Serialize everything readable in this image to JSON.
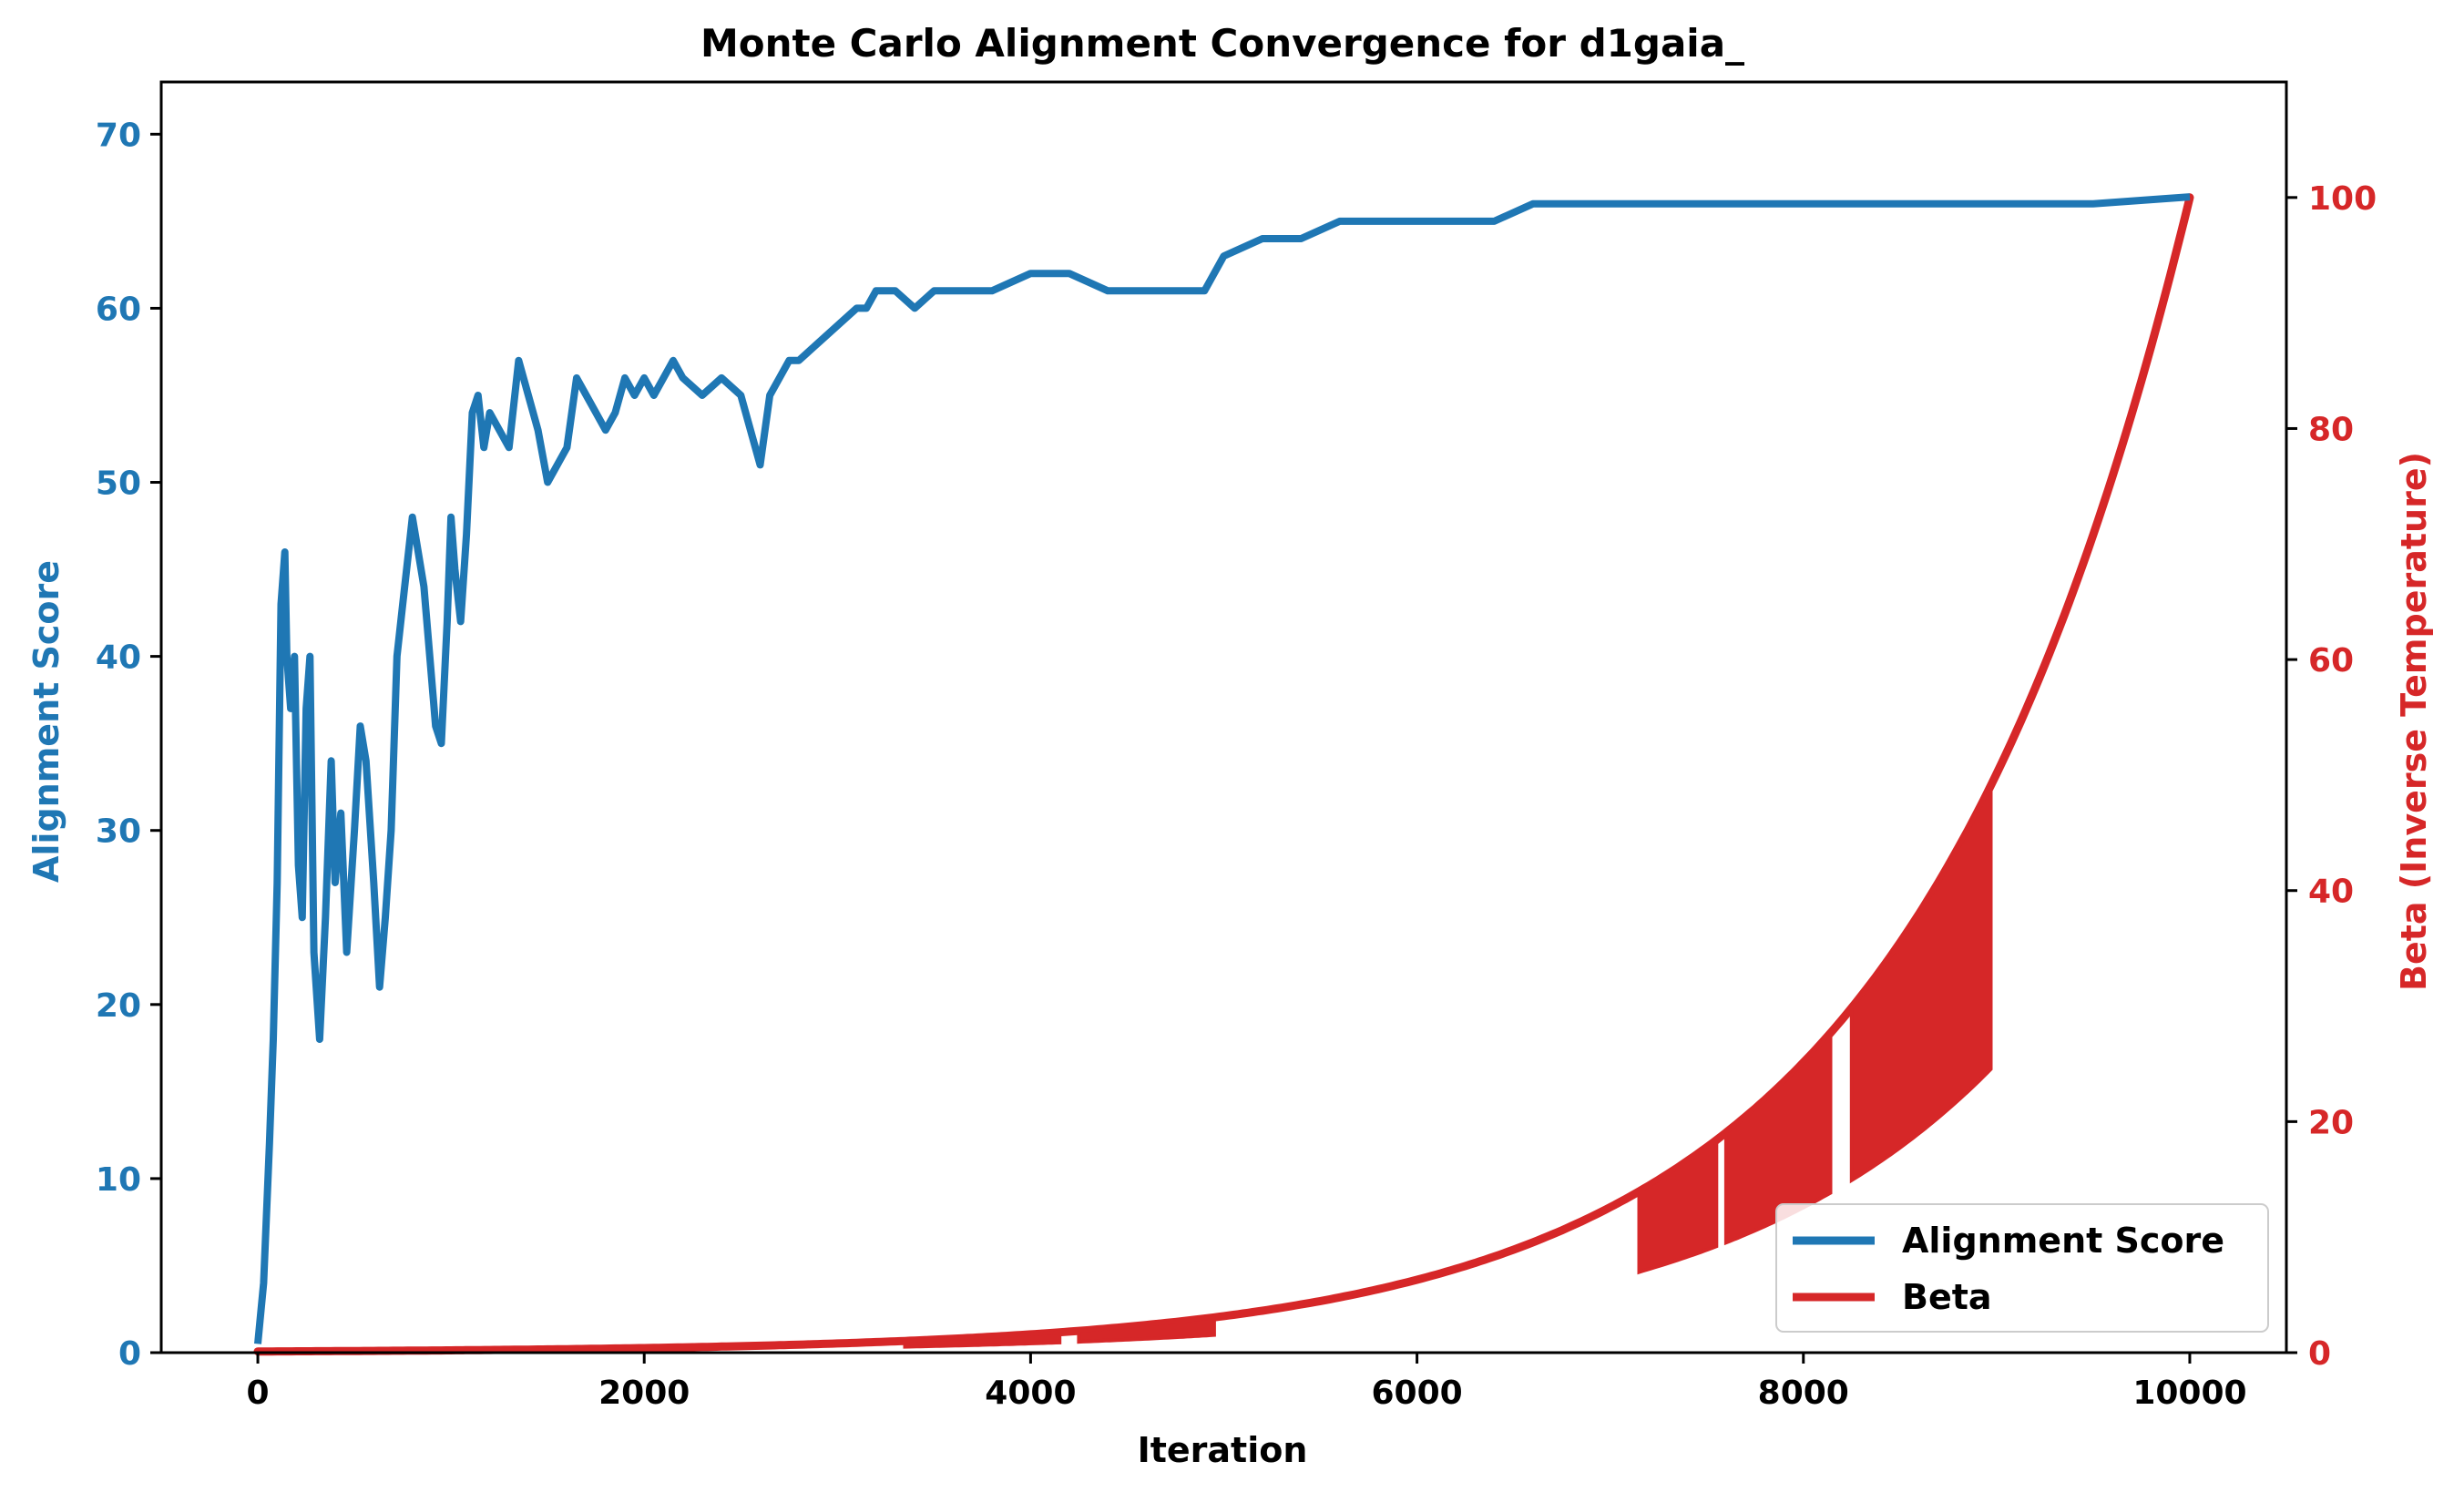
{
  "colors": {
    "score": "#1f77b4",
    "beta": "#d62728",
    "axis": "#000000",
    "background": "#ffffff"
  },
  "chart_data": {
    "type": "line",
    "title": "Monte Carlo Alignment Convergence for d1gaia_",
    "xlabel": "Iteration",
    "ylabel_left": "Alignment Score",
    "ylabel_right": "Beta (Inverse Temperature)",
    "xlim": [
      -500,
      10500
    ],
    "ylim_left": [
      0,
      73
    ],
    "ylim_right": [
      0,
      110
    ],
    "x_ticks": [
      0,
      2000,
      4000,
      6000,
      8000,
      10000
    ],
    "x_tick_labels": [
      "0",
      "2000",
      "4000",
      "6000",
      "8000",
      "10000"
    ],
    "y_left_ticks": [
      0,
      10,
      20,
      30,
      40,
      50,
      60,
      70
    ],
    "y_left_tick_labels": [
      "0",
      "10",
      "20",
      "30",
      "40",
      "50",
      "60",
      "70"
    ],
    "y_right_ticks": [
      0,
      20,
      40,
      60,
      80,
      100
    ],
    "y_right_tick_labels": [
      "0",
      "20",
      "40",
      "60",
      "80",
      "100"
    ],
    "grid": false,
    "legend_position": "bottom-right",
    "series": [
      {
        "name": "Alignment Score",
        "axis": "left",
        "x": [
          0,
          30,
          60,
          80,
          100,
          120,
          140,
          150,
          170,
          190,
          210,
          230,
          250,
          270,
          290,
          320,
          350,
          380,
          400,
          430,
          460,
          500,
          530,
          560,
          600,
          630,
          660,
          690,
          720,
          750,
          780,
          800,
          830,
          860,
          890,
          920,
          950,
          980,
          1000,
          1020,
          1050,
          1080,
          1110,
          1140,
          1170,
          1200,
          1250,
          1300,
          1350,
          1400,
          1450,
          1500,
          1550,
          1600,
          1650,
          1700,
          1750,
          1800,
          1850,
          1900,
          1950,
          2000,
          2050,
          2100,
          2150,
          2200,
          2300,
          2400,
          2500,
          2600,
          2650,
          2700,
          2750,
          2800,
          2900,
          3000,
          3100,
          3150,
          3200,
          3300,
          3400,
          3500,
          3600,
          3700,
          3800,
          4000,
          4200,
          4400,
          4600,
          4700,
          4900,
          4950,
          5000,
          5200,
          5400,
          5600,
          5800,
          6000,
          6200,
          6400,
          6600,
          6800,
          7000,
          7500,
          8000,
          8500,
          9000,
          9500,
          10000
        ],
        "y": [
          0.5,
          4,
          12,
          18,
          27,
          43,
          46,
          40,
          37,
          40,
          28,
          25,
          37,
          40,
          23,
          18,
          25,
          34,
          27,
          31,
          23,
          30,
          36,
          34,
          27,
          21,
          25,
          30,
          40,
          43,
          46,
          48,
          46,
          44,
          40,
          36,
          35,
          42,
          48,
          45,
          42,
          47,
          54,
          55,
          52,
          54,
          53,
          52,
          57,
          55,
          53,
          50,
          51,
          52,
          56,
          55,
          54,
          53,
          54,
          56,
          55,
          56,
          55,
          56,
          57,
          56,
          55,
          56,
          55,
          51,
          55,
          56,
          57,
          57,
          58,
          59,
          60,
          60,
          61,
          61,
          60,
          61,
          61,
          61,
          61,
          62,
          62,
          61,
          61,
          61,
          61,
          62,
          63,
          64,
          64,
          65,
          65,
          65,
          65,
          65,
          66,
          66,
          66,
          66,
          66,
          66,
          66,
          66,
          66.4
        ]
      },
      {
        "name": "Beta",
        "axis": "right",
        "equation": "beta = 0.1 * 1000^(x/10000)",
        "x_range": [
          0,
          10000
        ],
        "spike_ranges": [
          [
            3350,
            4150
          ],
          [
            4250,
            4950
          ],
          [
            7150,
            7560
          ],
          [
            7600,
            8150
          ],
          [
            8250,
            8980
          ]
        ],
        "spike_floor_fraction": 0.5
      }
    ]
  }
}
